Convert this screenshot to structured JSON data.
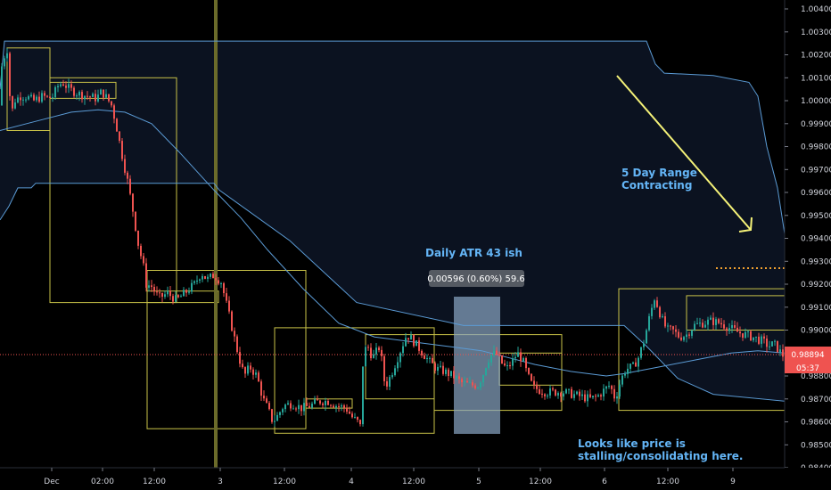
{
  "chart_data": {
    "type": "candlestick",
    "instrument_quote": {
      "last_price": "0.98894",
      "bar_countdown": "05:37"
    },
    "y_axis": {
      "range": [
        0.9838,
        1.0045
      ],
      "ticks": [
        "1.00400",
        "1.00300",
        "1.00200",
        "1.00100",
        "1.00000",
        "0.99900",
        "0.99800",
        "0.99700",
        "0.99600",
        "0.99500",
        "0.99400",
        "0.99300",
        "0.99200",
        "0.99100",
        "0.99000",
        "0.98900",
        "0.98800",
        "0.98700",
        "0.98600",
        "0.98500",
        "0.98400"
      ]
    },
    "x_axis": {
      "ticks": [
        "Dec",
        "02:00",
        "12:00",
        "3",
        "12:00",
        "4",
        "12:00",
        "5",
        "12:00",
        "6",
        "12:00",
        "9"
      ]
    },
    "annotations": {
      "range_note_line1": "5 Day Range",
      "range_note_line2": "Contracting",
      "atr_note": "Daily ATR 43 ish",
      "measure_label": "0.00596 (0.60%) 59.6",
      "price_note_line1": "Looks like price is",
      "price_note_line2": "stalling/consolidating here."
    },
    "daily_range_boxes": [
      {
        "high": 1.0023,
        "low": 0.9987
      },
      {
        "high": 1.001,
        "low": 0.9912
      },
      {
        "high": 0.9926,
        "low": 0.9857
      },
      {
        "high": 0.9901,
        "low": 0.9855
      },
      {
        "high": 0.9898,
        "low": 0.9865
      },
      {
        "high": 0.9918,
        "low": 0.9865
      }
    ],
    "price_path": [
      [
        0,
        0.9998
      ],
      [
        4,
        1.0015
      ],
      [
        8,
        1.0021
      ],
      [
        11,
        1.0023
      ],
      [
        14,
        0.9992
      ],
      [
        18,
        1.0
      ],
      [
        25,
        1.0002
      ],
      [
        30,
        1.0002
      ],
      [
        40,
        1.0
      ],
      [
        50,
        1.0002
      ],
      [
        56,
        1.0001
      ],
      [
        62,
        1.0002
      ],
      [
        66,
        1.0006
      ],
      [
        72,
        1.0008
      ],
      [
        80,
        1.0005
      ],
      [
        90,
        1.0003
      ],
      [
        100,
        1.0002
      ],
      [
        110,
        1.0001
      ],
      [
        116,
        1.0004
      ],
      [
        122,
        1.0001
      ],
      [
        127,
        0.9998
      ],
      [
        132,
        0.999
      ],
      [
        138,
        0.9978
      ],
      [
        145,
        0.9965
      ],
      [
        152,
        0.995
      ],
      [
        158,
        0.9935
      ],
      [
        162,
        0.993
      ],
      [
        166,
        0.992
      ],
      [
        172,
        0.9919
      ],
      [
        180,
        0.9914
      ],
      [
        190,
        0.9916
      ],
      [
        200,
        0.9913
      ],
      [
        206,
        0.9915
      ],
      [
        212,
        0.9917
      ],
      [
        220,
        0.992
      ],
      [
        228,
        0.9925
      ],
      [
        234,
        0.9922
      ],
      [
        242,
        0.9924
      ],
      [
        250,
        0.9921
      ],
      [
        258,
        0.9908
      ],
      [
        264,
        0.9898
      ],
      [
        270,
        0.9888
      ],
      [
        276,
        0.988
      ],
      [
        282,
        0.9884
      ],
      [
        290,
        0.988
      ],
      [
        297,
        0.987
      ],
      [
        302,
        0.9866
      ],
      [
        308,
        0.986
      ],
      [
        314,
        0.9863
      ],
      [
        320,
        0.9867
      ],
      [
        330,
        0.9868
      ],
      [
        340,
        0.9866
      ],
      [
        350,
        0.9867
      ],
      [
        360,
        0.9869
      ],
      [
        370,
        0.9869
      ],
      [
        380,
        0.9867
      ],
      [
        390,
        0.9866
      ],
      [
        397,
        0.9862
      ],
      [
        403,
        0.986
      ],
      [
        406,
        0.9858
      ],
      [
        409,
        0.9885
      ],
      [
        413,
        0.9894
      ],
      [
        420,
        0.9888
      ],
      [
        428,
        0.9893
      ],
      [
        434,
        0.9875
      ],
      [
        440,
        0.988
      ],
      [
        446,
        0.9886
      ],
      [
        452,
        0.9892
      ],
      [
        458,
        0.9898
      ],
      [
        464,
        0.9896
      ],
      [
        470,
        0.9893
      ],
      [
        476,
        0.989
      ],
      [
        484,
        0.9886
      ],
      [
        492,
        0.9883
      ],
      [
        500,
        0.9882
      ],
      [
        510,
        0.988
      ],
      [
        520,
        0.9877
      ],
      [
        530,
        0.9876
      ],
      [
        538,
        0.9876
      ],
      [
        544,
        0.9881
      ],
      [
        548,
        0.9886
      ],
      [
        552,
        0.9889
      ],
      [
        558,
        0.989
      ],
      [
        564,
        0.9886
      ],
      [
        570,
        0.9883
      ],
      [
        576,
        0.9886
      ],
      [
        582,
        0.989
      ],
      [
        588,
        0.9887
      ],
      [
        594,
        0.988
      ],
      [
        600,
        0.9875
      ],
      [
        606,
        0.9874
      ],
      [
        614,
        0.9873
      ],
      [
        624,
        0.9873
      ],
      [
        634,
        0.9873
      ],
      [
        644,
        0.9872
      ],
      [
        654,
        0.9871
      ],
      [
        664,
        0.987
      ],
      [
        672,
        0.9871
      ],
      [
        680,
        0.9874
      ],
      [
        686,
        0.9876
      ],
      [
        692,
        0.987
      ],
      [
        698,
        0.9878
      ],
      [
        704,
        0.9883
      ],
      [
        712,
        0.9884
      ],
      [
        718,
        0.9888
      ],
      [
        724,
        0.9895
      ],
      [
        730,
        0.9905
      ],
      [
        736,
        0.9914
      ],
      [
        740,
        0.991
      ],
      [
        744,
        0.9905
      ],
      [
        750,
        0.99
      ],
      [
        756,
        0.99
      ],
      [
        764,
        0.9897
      ],
      [
        772,
        0.9898
      ],
      [
        780,
        0.9902
      ],
      [
        790,
        0.9903
      ],
      [
        800,
        0.9904
      ],
      [
        810,
        0.9903
      ],
      [
        820,
        0.9901
      ],
      [
        830,
        0.9899
      ],
      [
        838,
        0.9898
      ],
      [
        846,
        0.9897
      ],
      [
        852,
        0.9896
      ],
      [
        858,
        0.9895
      ],
      [
        864,
        0.9893
      ],
      [
        870,
        0.9894
      ],
      [
        876,
        0.9891
      ],
      [
        880,
        0.9889
      ]
    ],
    "moving_average": [
      [
        0,
        0.9987
      ],
      [
        40,
        0.9991
      ],
      [
        80,
        0.9995
      ],
      [
        110,
        0.9996
      ],
      [
        140,
        0.9995
      ],
      [
        170,
        0.999
      ],
      [
        200,
        0.9978
      ],
      [
        240,
        0.9961
      ],
      [
        270,
        0.9949
      ],
      [
        300,
        0.9935
      ],
      [
        340,
        0.9918
      ],
      [
        380,
        0.9903
      ],
      [
        420,
        0.9897
      ],
      [
        460,
        0.9895
      ],
      [
        500,
        0.9893
      ],
      [
        540,
        0.9891
      ],
      [
        560,
        0.9889
      ],
      [
        600,
        0.9885
      ],
      [
        640,
        0.9882
      ],
      [
        680,
        0.988
      ],
      [
        700,
        0.9881
      ],
      [
        740,
        0.9884
      ],
      [
        780,
        0.9887
      ],
      [
        820,
        0.989
      ],
      [
        850,
        0.9891
      ],
      [
        880,
        0.989
      ]
    ],
    "upper_band": [
      [
        0,
        1.0005
      ],
      [
        5,
        1.0026
      ],
      [
        725,
        1.0026
      ],
      [
        735,
        1.0016
      ],
      [
        745,
        1.0012
      ],
      [
        800,
        1.0011
      ],
      [
        840,
        1.0008
      ],
      [
        850,
        1.0002
      ],
      [
        860,
        0.998
      ],
      [
        872,
        0.9962
      ],
      [
        880,
        0.9942
      ]
    ],
    "lower_band": [
      [
        0,
        0.9948
      ],
      [
        10,
        0.9954
      ],
      [
        20,
        0.9962
      ],
      [
        35,
        0.9962
      ],
      [
        40,
        0.9964
      ],
      [
        240,
        0.9964
      ],
      [
        246,
        0.9961
      ],
      [
        325,
        0.9939
      ],
      [
        400,
        0.9912
      ],
      [
        520,
        0.9902
      ],
      [
        700,
        0.9902
      ],
      [
        725,
        0.9893
      ],
      [
        760,
        0.9879
      ],
      [
        800,
        0.9872
      ],
      [
        880,
        0.9869
      ],
      [
        880,
        0.9857
      ]
    ],
    "colors": {
      "up": "#26a69a",
      "down": "#ef5350",
      "box": "#c9c248",
      "ma": "#5b9bd5",
      "band": "#5b9bd5",
      "arrow": "#f5f278",
      "marker": "#6b6b2a",
      "price_line": "#ef5350",
      "annotation": "#64b5f6",
      "measure_box": "#8aa7c4"
    }
  }
}
